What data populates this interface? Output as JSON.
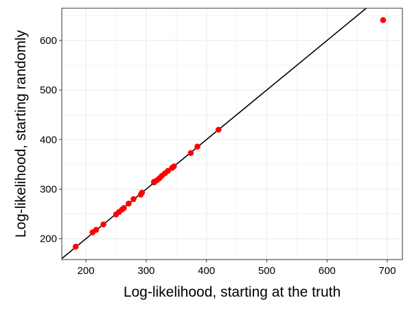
{
  "chart_data": {
    "type": "scatter",
    "title": "",
    "xlabel": "Log-likelihood, starting at the truth",
    "ylabel": "Log-likelihood, starting randomly",
    "xlim": [
      160,
      725
    ],
    "ylim": [
      158,
      665
    ],
    "x_ticks": [
      200,
      300,
      400,
      500,
      600,
      700
    ],
    "y_ticks": [
      200,
      300,
      400,
      500,
      600
    ],
    "grid": true,
    "legend": "none",
    "reference_line": {
      "intercept": 0,
      "slope": 1,
      "color": "#000000"
    },
    "colors": {
      "points": "#ff0000",
      "highlight": "#000000",
      "grid": "#ebebeb",
      "panel_border": "#333333"
    },
    "points": [
      {
        "x": 183,
        "y": 184
      },
      {
        "x": 211,
        "y": 213
      },
      {
        "x": 217,
        "y": 218
      },
      {
        "x": 229,
        "y": 229
      },
      {
        "x": 250,
        "y": 249
      },
      {
        "x": 255,
        "y": 254
      },
      {
        "x": 260,
        "y": 259
      },
      {
        "x": 263,
        "y": 262
      },
      {
        "x": 271,
        "y": 271
      },
      {
        "x": 279,
        "y": 280
      },
      {
        "x": 291,
        "y": 289
      },
      {
        "x": 293,
        "y": 293
      },
      {
        "x": 313,
        "y": 315
      },
      {
        "x": 318,
        "y": 318
      },
      {
        "x": 322,
        "y": 322
      },
      {
        "x": 326,
        "y": 327
      },
      {
        "x": 331,
        "y": 332
      },
      {
        "x": 336,
        "y": 337
      },
      {
        "x": 343,
        "y": 343
      },
      {
        "x": 346,
        "y": 346
      },
      {
        "x": 374,
        "y": 373
      },
      {
        "x": 385,
        "y": 386
      },
      {
        "x": 420,
        "y": 420
      },
      {
        "x": 693,
        "y": 641
      }
    ],
    "highlight_points": [
      {
        "x": 313,
        "y": 314
      }
    ]
  }
}
